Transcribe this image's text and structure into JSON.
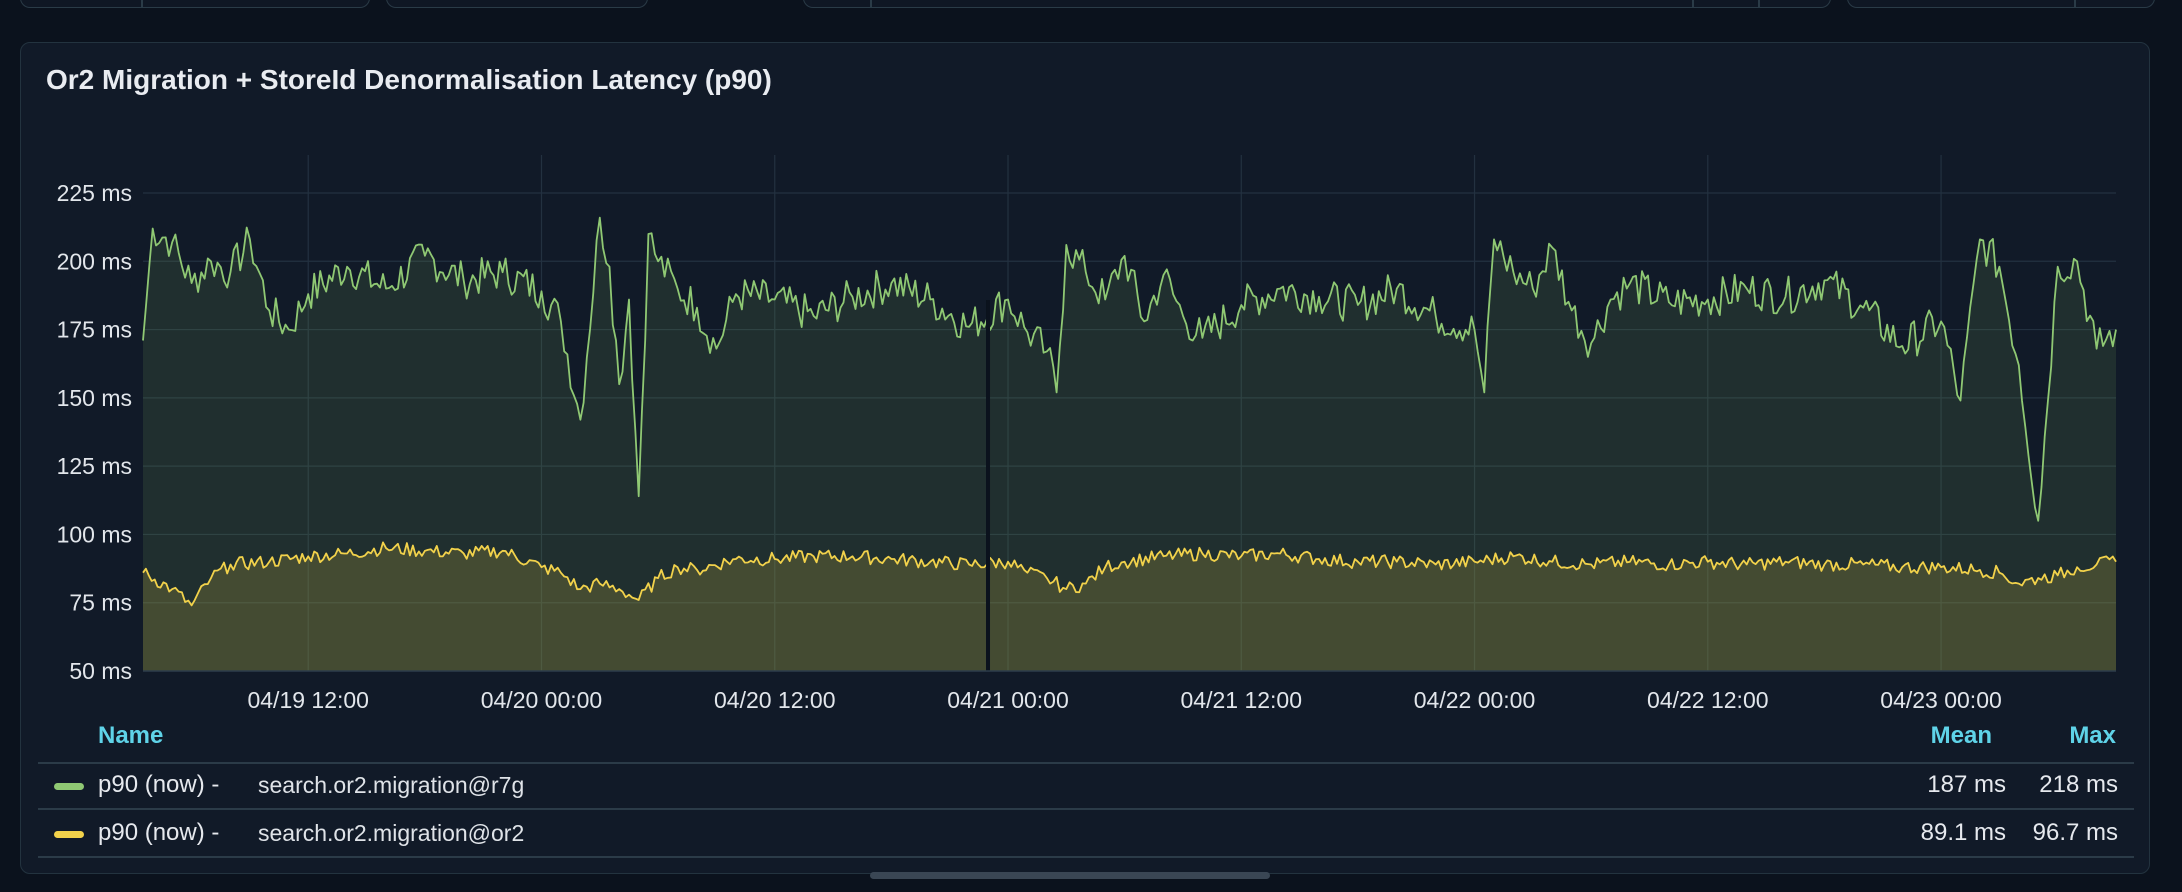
{
  "panel": {
    "title": "Or2 Migration + StoreId Denormalisation Latency (p90)"
  },
  "legend": {
    "name_header": "Name",
    "mean_header": "Mean",
    "max_header": "Max",
    "rows": [
      {
        "prefix": "p90 (now) -",
        "name": "search.or2.migration@r7g",
        "mean": "187 ms",
        "max": "218 ms",
        "color": "#8fc873"
      },
      {
        "prefix": "p90 (now) -",
        "name": "search.or2.migration@or2",
        "mean": "89.1 ms",
        "max": "96.7 ms",
        "color": "#f2d24b"
      }
    ]
  },
  "chart_data": {
    "type": "area",
    "title": "Or2 Migration + StoreId Denormalisation Latency (p90)",
    "y_unit": "ms",
    "ylim": [
      50,
      225
    ],
    "y_ticks": [
      {
        "value": 225,
        "label": "225 ms"
      },
      {
        "value": 200,
        "label": "200 ms"
      },
      {
        "value": 175,
        "label": "175 ms"
      },
      {
        "value": 150,
        "label": "150 ms"
      },
      {
        "value": 125,
        "label": "125 ms"
      },
      {
        "value": 100,
        "label": "100 ms"
      },
      {
        "value": 75,
        "label": "75 ms"
      },
      {
        "value": 50,
        "label": "50 ms"
      }
    ],
    "x_range": [
      "04/19 03:30",
      "04/23 09:00"
    ],
    "x_ticks": [
      "04/19 12:00",
      "04/20 00:00",
      "04/20 12:00",
      "04/21 00:00",
      "04/21 12:00",
      "04/22 00:00",
      "04/22 12:00",
      "04/23 00:00"
    ],
    "grid": true,
    "series": [
      {
        "name": "p90 (now) - search.or2.migration@r7g",
        "color": "#8fc873",
        "points": [
          [
            "04/19 03:30",
            171
          ],
          [
            "04/19 04:00",
            212
          ],
          [
            "04/19 05:00",
            207
          ],
          [
            "04/19 06:00",
            192
          ],
          [
            "04/19 07:00",
            200
          ],
          [
            "04/19 08:00",
            196
          ],
          [
            "04/19 09:00",
            208
          ],
          [
            "04/19 10:00",
            182
          ],
          [
            "04/19 11:00",
            175
          ],
          [
            "04/19 12:00",
            188
          ],
          [
            "04/19 14:00",
            198
          ],
          [
            "04/19 16:00",
            190
          ],
          [
            "04/19 18:00",
            202
          ],
          [
            "04/19 20:00",
            193
          ],
          [
            "04/19 22:00",
            196
          ],
          [
            "04/20 00:00",
            189
          ],
          [
            "04/20 01:00",
            178
          ],
          [
            "04/20 02:00",
            142
          ],
          [
            "04/20 03:00",
            216
          ],
          [
            "04/20 03:30",
            198
          ],
          [
            "04/20 04:00",
            155
          ],
          [
            "04/20 04:30",
            186
          ],
          [
            "04/20 05:00",
            114
          ],
          [
            "04/20 05:30",
            210
          ],
          [
            "04/20 06:00",
            200
          ],
          [
            "04/20 07:00",
            190
          ],
          [
            "04/20 08:00",
            183
          ],
          [
            "04/20 09:00",
            168
          ],
          [
            "04/20 10:00",
            188
          ],
          [
            "04/20 12:00",
            186
          ],
          [
            "04/20 14:00",
            180
          ],
          [
            "04/20 16:00",
            187
          ],
          [
            "04/20 18:00",
            192
          ],
          [
            "04/20 20:00",
            186
          ],
          [
            "04/20 22:00",
            176
          ],
          [
            "04/21 00:00",
            186
          ],
          [
            "04/21 01:00",
            174
          ],
          [
            "04/21 02:00",
            167
          ],
          [
            "04/21 02:30",
            152
          ],
          [
            "04/21 03:00",
            206
          ],
          [
            "04/21 04:00",
            196
          ],
          [
            "04/21 05:00",
            186
          ],
          [
            "04/21 06:00",
            202
          ],
          [
            "04/21 07:00",
            178
          ],
          [
            "04/21 08:00",
            195
          ],
          [
            "04/21 09:00",
            180
          ],
          [
            "04/21 10:00",
            172
          ],
          [
            "04/21 12:00",
            184
          ],
          [
            "04/21 14:00",
            190
          ],
          [
            "04/21 16:00",
            187
          ],
          [
            "04/21 18:00",
            184
          ],
          [
            "04/21 20:00",
            190
          ],
          [
            "04/21 22:00",
            180
          ],
          [
            "04/22 00:00",
            175
          ],
          [
            "04/22 00:30",
            152
          ],
          [
            "04/22 01:00",
            208
          ],
          [
            "04/22 02:00",
            196
          ],
          [
            "04/22 03:00",
            190
          ],
          [
            "04/22 04:00",
            205
          ],
          [
            "04/22 05:00",
            182
          ],
          [
            "04/22 06:00",
            170
          ],
          [
            "04/22 07:00",
            186
          ],
          [
            "04/22 08:00",
            192
          ],
          [
            "04/22 10:00",
            185
          ],
          [
            "04/22 12:00",
            186
          ],
          [
            "04/22 14:00",
            190
          ],
          [
            "04/22 16:00",
            187
          ],
          [
            "04/22 18:00",
            193
          ],
          [
            "04/22 20:00",
            183
          ],
          [
            "04/22 22:00",
            169
          ],
          [
            "04/23 00:00",
            178
          ],
          [
            "04/23 01:00",
            149
          ],
          [
            "04/23 02:00",
            208
          ],
          [
            "04/23 03:00",
            198
          ],
          [
            "04/23 04:00",
            162
          ],
          [
            "04/23 05:00",
            105
          ],
          [
            "04/23 06:00",
            198
          ],
          [
            "04/23 07:00",
            200
          ],
          [
            "04/23 08:00",
            168
          ],
          [
            "04/23 09:00",
            175
          ]
        ]
      },
      {
        "name": "p90 (now) - search.or2.migration@or2",
        "color": "#f2d24b",
        "points": [
          [
            "04/19 03:30",
            86
          ],
          [
            "04/19 05:00",
            80
          ],
          [
            "04/19 06:00",
            74
          ],
          [
            "04/19 07:00",
            84
          ],
          [
            "04/19 08:00",
            89
          ],
          [
            "04/19 10:00",
            90
          ],
          [
            "04/19 12:00",
            92
          ],
          [
            "04/19 14:00",
            93
          ],
          [
            "04/19 16:00",
            95
          ],
          [
            "04/19 18:00",
            94
          ],
          [
            "04/19 20:00",
            93
          ],
          [
            "04/19 22:00",
            94
          ],
          [
            "04/20 00:00",
            88
          ],
          [
            "04/20 01:00",
            86
          ],
          [
            "04/20 02:00",
            80
          ],
          [
            "04/20 03:00",
            82
          ],
          [
            "04/20 04:00",
            80
          ],
          [
            "04/20 05:00",
            76
          ],
          [
            "04/20 06:00",
            84
          ],
          [
            "04/20 07:00",
            88
          ],
          [
            "04/20 08:00",
            87
          ],
          [
            "04/20 10:00",
            91
          ],
          [
            "04/20 12:00",
            91
          ],
          [
            "04/20 14:00",
            92
          ],
          [
            "04/20 16:00",
            92
          ],
          [
            "04/20 18:00",
            91
          ],
          [
            "04/20 20:00",
            90
          ],
          [
            "04/20 22:00",
            89
          ],
          [
            "04/21 00:00",
            90
          ],
          [
            "04/21 01:00",
            86
          ],
          [
            "04/21 02:00",
            84
          ],
          [
            "04/21 03:00",
            80
          ],
          [
            "04/21 04:00",
            82
          ],
          [
            "04/21 05:00",
            88
          ],
          [
            "04/21 06:00",
            90
          ],
          [
            "04/21 08:00",
            92
          ],
          [
            "04/21 10:00",
            93
          ],
          [
            "04/21 12:00",
            92
          ],
          [
            "04/21 14:00",
            93
          ],
          [
            "04/21 16:00",
            91
          ],
          [
            "04/21 18:00",
            90
          ],
          [
            "04/21 20:00",
            90
          ],
          [
            "04/21 22:00",
            89
          ],
          [
            "04/22 00:00",
            90
          ],
          [
            "04/22 02:00",
            92
          ],
          [
            "04/22 04:00",
            90
          ],
          [
            "04/22 06:00",
            89
          ],
          [
            "04/22 08:00",
            90
          ],
          [
            "04/22 10:00",
            89
          ],
          [
            "04/22 12:00",
            90
          ],
          [
            "04/22 14:00",
            89
          ],
          [
            "04/22 16:00",
            90
          ],
          [
            "04/22 18:00",
            89
          ],
          [
            "04/22 20:00",
            89
          ],
          [
            "04/22 22:00",
            88
          ],
          [
            "04/23 00:00",
            88
          ],
          [
            "04/23 02:00",
            87
          ],
          [
            "04/23 03:00",
            86
          ],
          [
            "04/23 04:00",
            82
          ],
          [
            "04/23 05:00",
            84
          ],
          [
            "04/23 06:00",
            85
          ],
          [
            "04/23 07:00",
            88
          ],
          [
            "04/23 08:00",
            89
          ],
          [
            "04/23 09:00",
            90
          ]
        ]
      }
    ]
  }
}
